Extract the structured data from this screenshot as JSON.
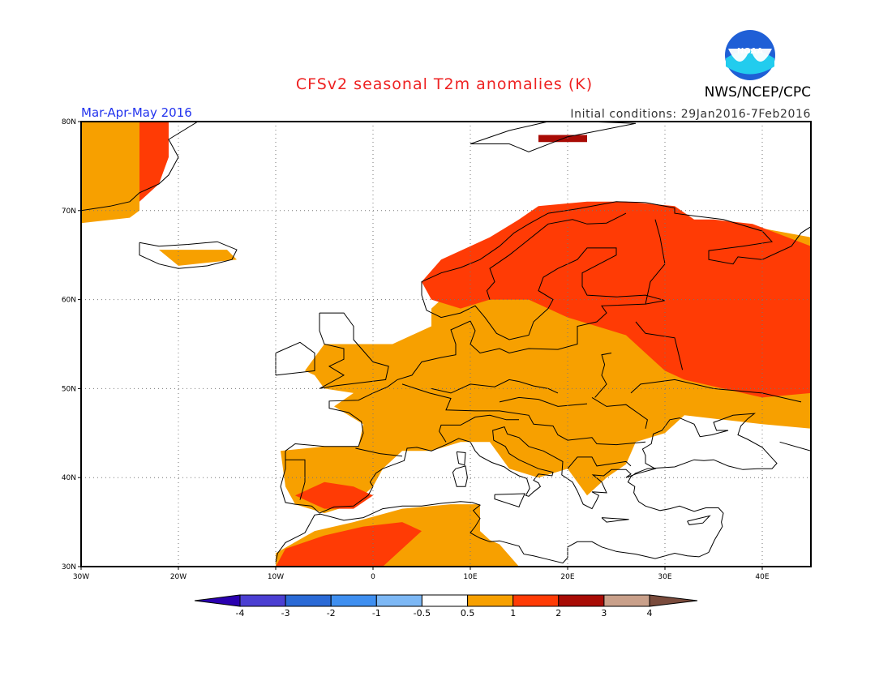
{
  "header": {
    "title": "CFSv2 seasonal T2m anomalies (K)",
    "period": "Mar-Apr-May 2016",
    "initial_conditions": "Initial conditions: 29Jan2016-7Feb2016",
    "agency": "NWS/NCEP/CPC",
    "logo_text": "NOAA"
  },
  "colors": {
    "title": "#ee2222",
    "period": "#2233ee",
    "frame": "#000000",
    "grid": "#777777",
    "land_outline": "#000000"
  },
  "map": {
    "projection": "equirectangular",
    "lon_range": [
      -30,
      45
    ],
    "lat_range": [
      30,
      80
    ],
    "grid": "dotted",
    "lon_labels": [
      "30W",
      "20W",
      "10W",
      "0",
      "10E",
      "20E",
      "30E",
      "40E"
    ],
    "lat_labels": [
      "30N",
      "40N",
      "50N",
      "60N",
      "70N",
      "80N"
    ]
  },
  "colorbar": {
    "labels": [
      "-4",
      "-3",
      "-2",
      "-1",
      "-0.5",
      "0.5",
      "1",
      "2",
      "3",
      "4"
    ],
    "colors": [
      "#2a00b0",
      "#4b3fd2",
      "#2a6ad6",
      "#3f8ff0",
      "#7db8f5",
      "#ffffff",
      "#f7a000",
      "#ff3b05",
      "#a80b05",
      "#c9a08a",
      "#7a4b3c"
    ]
  },
  "anomaly_regions": [
    {
      "level": "0.5-1",
      "color": "#f7a000",
      "name": "greenland-west",
      "polygon": [
        [
          -30,
          80
        ],
        [
          -24,
          80
        ],
        [
          -24,
          70
        ],
        [
          -25,
          69.2
        ],
        [
          -30,
          68.6
        ]
      ]
    },
    {
      "level": "1-2",
      "color": "#ff3b05",
      "name": "greenland-east",
      "polygon": [
        [
          -24,
          80
        ],
        [
          -21,
          80
        ],
        [
          -21,
          76
        ],
        [
          -22,
          73
        ],
        [
          -24,
          71
        ]
      ]
    },
    {
      "level": "0.5-1",
      "color": "#f7a000",
      "name": "iceland",
      "polygon": [
        [
          -22,
          65.6
        ],
        [
          -15,
          65.6
        ],
        [
          -14,
          64.5
        ],
        [
          -20,
          63.8
        ]
      ]
    },
    {
      "level": "0.5-1",
      "color": "#f7a000",
      "name": "europe-main",
      "polygon": [
        [
          -7,
          52
        ],
        [
          -5,
          55
        ],
        [
          2,
          55
        ],
        [
          6,
          57
        ],
        [
          6,
          59
        ],
        [
          9,
          62
        ],
        [
          15,
          66
        ],
        [
          20,
          70
        ],
        [
          26,
          70
        ],
        [
          30,
          70
        ],
        [
          35,
          67
        ],
        [
          40,
          68
        ],
        [
          45,
          67
        ],
        [
          45,
          45.5
        ],
        [
          40,
          46
        ],
        [
          36,
          46.5
        ],
        [
          32,
          47
        ],
        [
          30,
          45
        ],
        [
          27,
          44
        ],
        [
          26,
          41.5
        ],
        [
          24,
          40
        ],
        [
          22,
          38
        ],
        [
          20,
          41
        ],
        [
          17,
          40
        ],
        [
          14,
          41
        ],
        [
          12,
          44
        ],
        [
          9,
          44
        ],
        [
          6,
          43
        ],
        [
          3,
          43
        ],
        [
          1,
          41
        ],
        [
          0,
          39
        ],
        [
          -2,
          37
        ],
        [
          -5,
          36
        ],
        [
          -8,
          37
        ],
        [
          -9,
          39
        ],
        [
          -9.5,
          43
        ],
        [
          -5,
          43.5
        ],
        [
          -1.5,
          43.5
        ],
        [
          -1,
          46
        ],
        [
          -4,
          48
        ],
        [
          -2,
          49.5
        ],
        [
          -5,
          50
        ],
        [
          -6,
          51.5
        ]
      ]
    },
    {
      "level": "0.5-1",
      "color": "#f7a000",
      "name": "north-africa",
      "polygon": [
        [
          -10,
          30
        ],
        [
          -10,
          31.5
        ],
        [
          -6,
          34
        ],
        [
          -2,
          35
        ],
        [
          3,
          36.5
        ],
        [
          8,
          37
        ],
        [
          11,
          37
        ],
        [
          11,
          34
        ],
        [
          12,
          33
        ],
        [
          13,
          32.5
        ],
        [
          15,
          30
        ]
      ]
    },
    {
      "level": "1-2",
      "color": "#ff3b05",
      "name": "scandinavia-russia",
      "polygon": [
        [
          5,
          62
        ],
        [
          7,
          64.5
        ],
        [
          12,
          67
        ],
        [
          15,
          69
        ],
        [
          17,
          70.5
        ],
        [
          22,
          71
        ],
        [
          26,
          71
        ],
        [
          31,
          70.5
        ],
        [
          33,
          69
        ],
        [
          35,
          69
        ],
        [
          39,
          68.5
        ],
        [
          45,
          66
        ],
        [
          45,
          49.5
        ],
        [
          40,
          49
        ],
        [
          36,
          50
        ],
        [
          32,
          51
        ],
        [
          30,
          52
        ],
        [
          28,
          54
        ],
        [
          26,
          56
        ],
        [
          23,
          57
        ],
        [
          20,
          58
        ],
        [
          16,
          60
        ],
        [
          12,
          60
        ],
        [
          9,
          59
        ],
        [
          6,
          60
        ]
      ]
    },
    {
      "level": "1-2",
      "color": "#ff3b05",
      "name": "iberia-south",
      "polygon": [
        [
          -8,
          38
        ],
        [
          -5,
          39.5
        ],
        [
          -2,
          39
        ],
        [
          0,
          38
        ],
        [
          -2,
          36.5
        ],
        [
          -5,
          36.5
        ]
      ]
    },
    {
      "level": "1-2",
      "color": "#ff3b05",
      "name": "north-africa-core",
      "polygon": [
        [
          -10,
          30
        ],
        [
          -9,
          32
        ],
        [
          -5,
          33.5
        ],
        [
          -1,
          34.5
        ],
        [
          3,
          35
        ],
        [
          5,
          34
        ],
        [
          3,
          32
        ],
        [
          1,
          30
        ]
      ]
    },
    {
      "level": "2-3",
      "color": "#a80b05",
      "name": "svalbard",
      "polygon": [
        [
          17,
          78.5
        ],
        [
          22,
          78.5
        ],
        [
          22,
          77.7
        ],
        [
          17,
          77.7
        ]
      ]
    }
  ]
}
